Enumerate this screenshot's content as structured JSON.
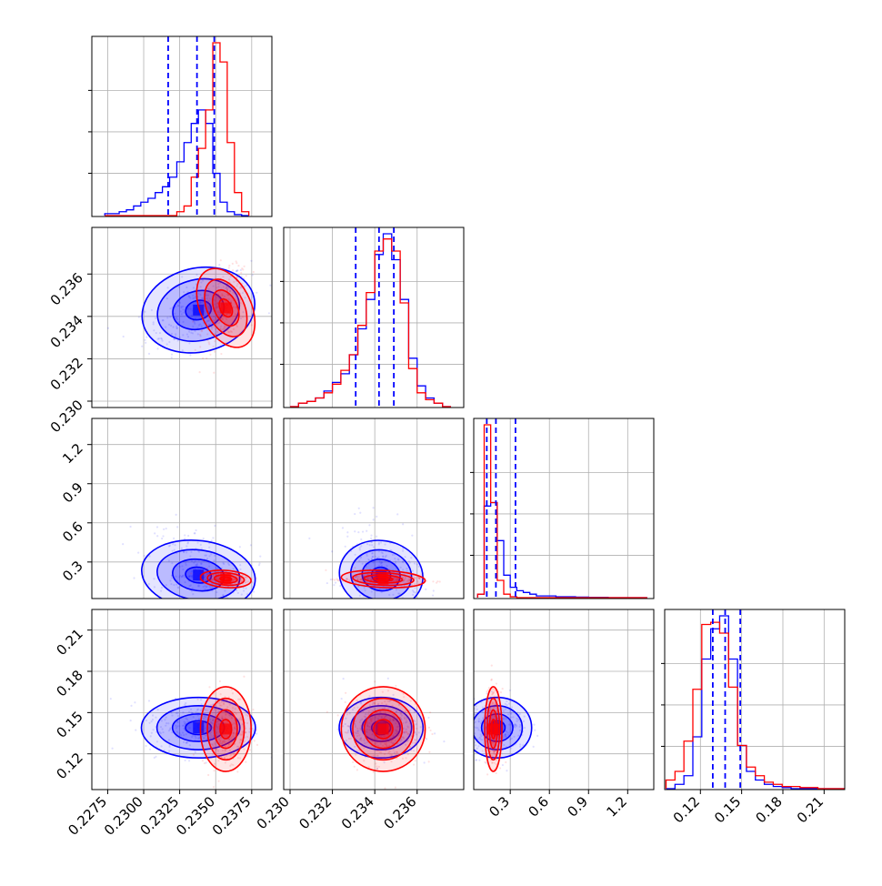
{
  "colors": {
    "series_a": "#0000ff",
    "series_b": "#ff0000",
    "grid": "#b0b0b0",
    "frame": "#000000"
  },
  "chart_data": {
    "type": "corner",
    "grid": true,
    "series": [
      {
        "color": "#0000ff",
        "quantiles": {
          "p0": [
            0.2317,
            0.2331,
            0.12,
            0.129
          ],
          "p1": [
            0.2337,
            0.2342,
            0.19,
            0.138
          ],
          "p2": [
            0.2349,
            0.2349,
            0.34,
            0.149
          ]
        },
        "center": [
          0.2338,
          0.2343,
          0.2,
          0.139
        ],
        "spread": [
          0.0018,
          0.0009,
          0.12,
          0.01
        ],
        "hist": [
          {
            "edges_start": 0.2273,
            "bin_width": 0.0005,
            "counts": [
              0.01,
              0.01,
              0.02,
              0.03,
              0.05,
              0.07,
              0.09,
              0.12,
              0.15,
              0.2,
              0.28,
              0.38,
              0.48,
              0.55,
              0.48,
              0.22,
              0.07,
              0.02,
              0.005,
              0.0
            ]
          },
          {
            "edges_start": 0.23,
            "bin_width": 0.0004,
            "counts": [
              0.0,
              0.02,
              0.03,
              0.05,
              0.09,
              0.14,
              0.19,
              0.3,
              0.45,
              0.62,
              0.88,
              1.0,
              0.85,
              0.62,
              0.28,
              0.12,
              0.05,
              0.02,
              0.0
            ]
          },
          {
            "edges_start": 0.05,
            "bin_width": 0.05,
            "counts": [
              0.02,
              0.53,
              0.55,
              0.33,
              0.13,
              0.06,
              0.04,
              0.03,
              0.02,
              0.01,
              0.01,
              0.01,
              0.005,
              0.005,
              0.005,
              0.003,
              0.003,
              0.002,
              0.002,
              0.002,
              0.0,
              0.0,
              0.0,
              0.0,
              0.0,
              0.0
            ]
          },
          {
            "edges_start": 0.095,
            "bin_width": 0.0065,
            "counts": [
              0.0,
              0.02,
              0.06,
              0.24,
              0.6,
              0.74,
              0.8,
              0.6,
              0.2,
              0.08,
              0.04,
              0.02,
              0.01,
              0.005,
              0.0,
              0.0,
              0.0,
              0.0,
              0.0,
              0.0
            ]
          }
        ]
      },
      {
        "color": "#ff0000",
        "quantiles": {},
        "center": [
          0.2357,
          0.2344,
          0.17,
          0.138
        ],
        "spread": [
          0.0008,
          0.0009,
          0.03,
          0.014
        ],
        "hist": [
          {
            "edges_start": 0.2273,
            "bin_width": 0.0005,
            "counts": [
              0.0,
              0.0,
              0.0,
              0.0,
              0.0,
              0.0,
              0.0,
              0.0,
              0.0,
              0.0,
              0.02,
              0.05,
              0.2,
              0.35,
              0.55,
              0.9,
              0.8,
              0.38,
              0.12,
              0.02
            ]
          },
          {
            "edges_start": 0.23,
            "bin_width": 0.0004,
            "counts": [
              0.0,
              0.02,
              0.03,
              0.05,
              0.08,
              0.13,
              0.21,
              0.3,
              0.47,
              0.66,
              0.9,
              0.97,
              0.9,
              0.6,
              0.22,
              0.08,
              0.04,
              0.02,
              0.0
            ]
          },
          {
            "edges_start": 0.05,
            "bin_width": 0.05,
            "counts": [
              0.02,
              1.0,
              0.55,
              0.1,
              0.02,
              0.005,
              0.0,
              0.0,
              0.0,
              0.0,
              0.0,
              0.0,
              0.0,
              0.0,
              0.0,
              0.0,
              0.0,
              0.0,
              0.0,
              0.0,
              0.0,
              0.0,
              0.0,
              0.0,
              0.0,
              0.0
            ]
          },
          {
            "edges_start": 0.095,
            "bin_width": 0.0065,
            "counts": [
              0.04,
              0.08,
              0.22,
              0.46,
              0.76,
              0.77,
              0.72,
              0.47,
              0.2,
              0.1,
              0.06,
              0.03,
              0.02,
              0.01,
              0.01,
              0.005,
              0.005,
              0.0,
              0.0,
              0.0
            ]
          }
        ]
      }
    ],
    "params": [
      {
        "range": [
          0.2264,
          0.2389
        ],
        "ticks": [
          0.2275,
          0.23,
          0.2325,
          0.235,
          0.2375
        ],
        "tick_labels": [
          "0.2275",
          "0.2300",
          "0.2325",
          "0.2350",
          "0.2375"
        ]
      },
      {
        "range": [
          0.2297,
          0.2382
        ],
        "ticks": [
          0.23,
          0.232,
          0.234,
          0.236
        ],
        "tick_labels": [
          "0.230",
          "0.232",
          "0.234",
          "0.236"
        ]
      },
      {
        "range": [
          0.02,
          1.4
        ],
        "ticks": [
          0.3,
          0.6,
          0.9,
          1.2
        ],
        "tick_labels": [
          "0.3",
          "0.6",
          "0.9",
          "1.2"
        ]
      },
      {
        "range": [
          0.094,
          0.225
        ],
        "ticks": [
          0.12,
          0.15,
          0.18,
          0.21
        ],
        "tick_labels": [
          "0.12",
          "0.15",
          "0.18",
          "0.21"
        ]
      }
    ]
  }
}
